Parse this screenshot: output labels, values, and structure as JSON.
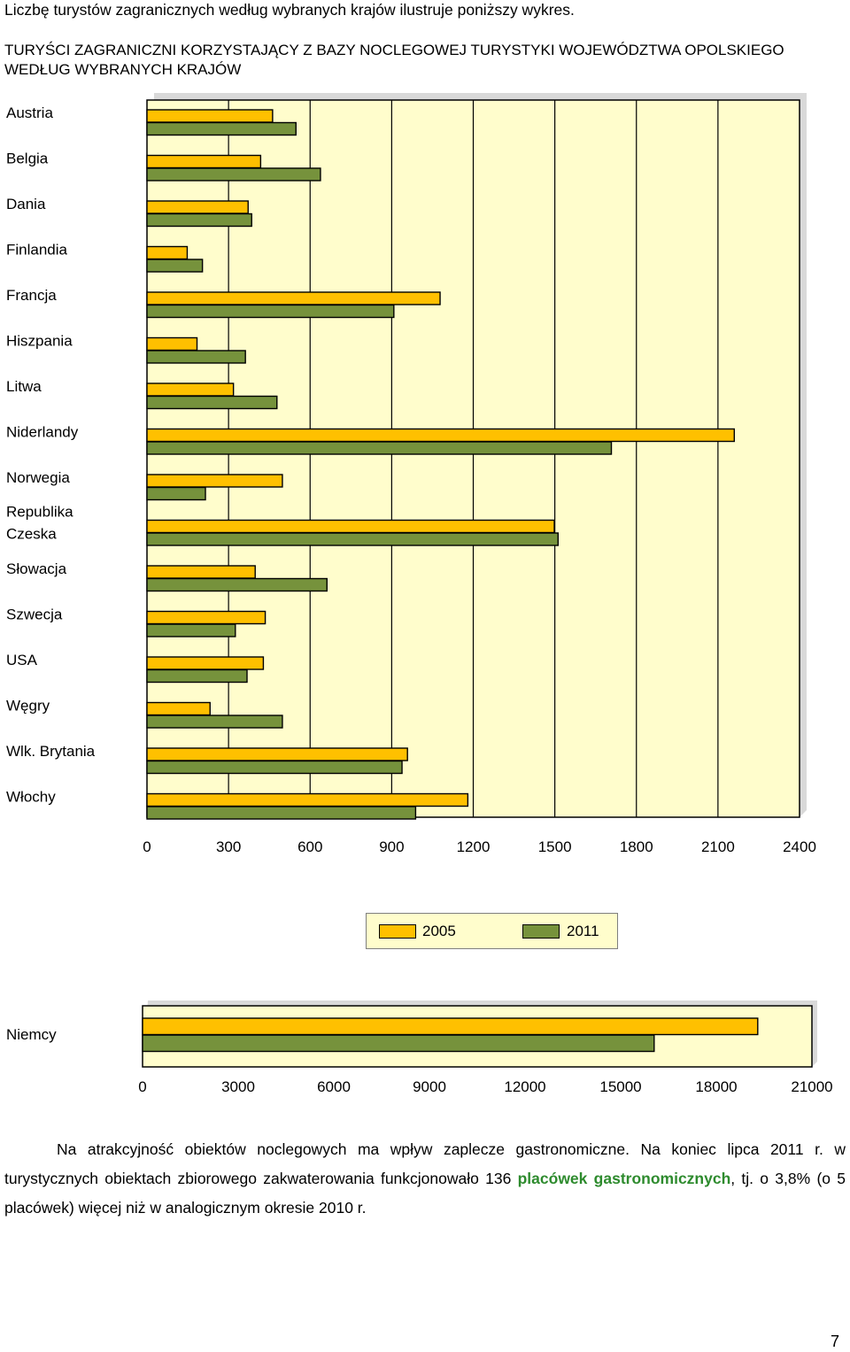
{
  "intro_text": "Liczbę turystów zagranicznych według wybranych krajów ilustruje poniższy wykres.",
  "colors": {
    "series_2005": "#FFC000",
    "series_2011": "#76923C",
    "plot_bg": "#FFFDCC",
    "text_green": "#2e8b2e"
  },
  "chart_data": [
    {
      "type": "bar",
      "orientation": "horizontal",
      "title": "TURYŚCI ZAGRANICZNI KORZYSTAJĄCY Z BAZY NOCLEGOWEJ TURYSTYKI WOJEWÓDZTWA OPOLSKIEGO WEDŁUG WYBRANYCH KRAJÓW",
      "categories": [
        "Austria",
        "Belgia",
        "Dania",
        "Finlandia",
        "Francja",
        "Hiszpania",
        "Litwa",
        "Niderlandy",
        "Norwegia",
        "Republika Czeska",
        "Słowacja",
        "Szwecja",
        "USA",
        "Węgry",
        "Wlk. Brytania",
        "Włochy"
      ],
      "category_lines": [
        [
          "Austria"
        ],
        [
          "Belgia"
        ],
        [
          "Dania"
        ],
        [
          "Finlandia"
        ],
        [
          "Francja"
        ],
        [
          "Hiszpania"
        ],
        [
          "Litwa"
        ],
        [
          "Niderlandy"
        ],
        [
          "Norwegia"
        ],
        [
          "Republika",
          "Czeska"
        ],
        [
          "Słowacja"
        ],
        [
          "Szwecja"
        ],
        [
          "USA"
        ],
        [
          "Węgry"
        ],
        [
          "Wlk. Brytania"
        ],
        [
          "Włochy"
        ]
      ],
      "series": [
        {
          "name": "2005",
          "values": [
            462,
            418,
            372,
            148,
            1078,
            184,
            318,
            2160,
            498,
            1498,
            398,
            435,
            428,
            232,
            958,
            1180
          ]
        },
        {
          "name": "2011",
          "values": [
            548,
            638,
            385,
            204,
            908,
            362,
            478,
            1708,
            215,
            1512,
            662,
            325,
            368,
            498,
            938,
            988
          ]
        }
      ],
      "xlim": [
        0,
        2400
      ],
      "xticks": [
        "0",
        "300",
        "600",
        "900",
        "1200",
        "1500",
        "1800",
        "2100",
        "2400"
      ],
      "grid": true
    },
    {
      "type": "bar",
      "orientation": "horizontal",
      "categories": [
        "Niemcy"
      ],
      "category_lines": [
        [
          "Niemcy"
        ]
      ],
      "series": [
        {
          "name": "2005",
          "values": [
            19300
          ]
        },
        {
          "name": "2011",
          "values": [
            16050
          ]
        }
      ],
      "xlim": [
        0,
        21000
      ],
      "xticks": [
        "0",
        "3000",
        "6000",
        "9000",
        "12000",
        "15000",
        "18000",
        "21000"
      ],
      "grid": false
    }
  ],
  "legend": {
    "items": [
      {
        "label": "2005",
        "color": "#FFC000"
      },
      {
        "label": "2011",
        "color": "#76923C"
      }
    ]
  },
  "paragraph": {
    "part1": "Na atrakcyjność obiektów noclegowych ma wpływ zaplecze gastronomiczne. Na koniec lipca 2011 r. w turystycznych obiektach zbiorowego zakwaterowania funkcjonowało 136 ",
    "highlight": "placówek gastronomicznych",
    "part2": ", tj. o 3,8% (o 5 placówek) więcej niż w analogicznym okresie 2010 r."
  },
  "page_number": "7"
}
